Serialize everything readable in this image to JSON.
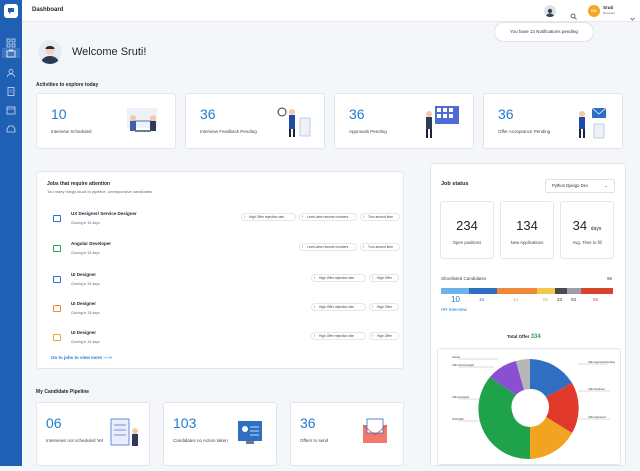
{
  "header": {
    "title": "Dashboard",
    "user": {
      "initials": "DS",
      "name": "Sruti",
      "role": "Recruiter"
    }
  },
  "notification": {
    "text": "You have 13 Notifications pending"
  },
  "welcome": {
    "title": "Welcome Sruti!"
  },
  "activities": {
    "title": "Activities to explore today",
    "cards": [
      {
        "value": "10",
        "label": "Interview Scheduled"
      },
      {
        "value": "36",
        "label": "Interview Feedback Pending"
      },
      {
        "value": "36",
        "label": "Approvals Pending"
      },
      {
        "value": "36",
        "label": "Offer Acceptance Pending"
      }
    ]
  },
  "jobs": {
    "title": "Jobs that require attention",
    "subtitle": "Too many things stuck in pipeline, unresponsive candidates",
    "rows": [
      {
        "title": "UX Designer/ Service Designer",
        "sub": "Closing in 15 days",
        "tags": [
          "High Offer rejection rate",
          "Level-wise resume numbers",
          "Turn around time"
        ]
      },
      {
        "title": "Angular Developer",
        "sub": "Closing in 15 days",
        "tags": [
          "Level-wise resume numbers",
          "Turn around time"
        ]
      },
      {
        "title": "UI Designer",
        "sub": "Closing in 15 days",
        "tags": [
          "High Offer rejection rate",
          "High Offer"
        ]
      },
      {
        "title": "UI Designer",
        "sub": "Closing in 15 days",
        "tags": [
          "High Offer rejection rate",
          "High Offer"
        ]
      },
      {
        "title": "UI Designer",
        "sub": "Closing in 15 days",
        "tags": [
          "High Offer rejection rate",
          "High Offer"
        ]
      }
    ],
    "link": "Go to jobs to view more ---->"
  },
  "pipeline": {
    "title": "My Candidate Pipeline",
    "cards": [
      {
        "value": "06",
        "label": "Interviews not scheduled Yet"
      },
      {
        "value": "103",
        "label": "Candidates no Action taken"
      },
      {
        "value": "36",
        "label": "Offers to send"
      }
    ]
  },
  "job_status": {
    "title": "Job status",
    "dropdown": "Python Django Dev",
    "stats": [
      {
        "value": "234",
        "unit": "",
        "label": "Open positions"
      },
      {
        "value": "134",
        "unit": "",
        "label": "New Applications"
      },
      {
        "value": "34",
        "unit": "days",
        "label": "Avg. Time to fill"
      }
    ],
    "shortlisted_label": "Shortlisted Candidates",
    "shortlisted_total": "98",
    "segments": [
      {
        "value": "10",
        "color": "#6cb2ea"
      },
      {
        "value": "10",
        "color": "#2e6fc2"
      },
      {
        "value": "14",
        "color": "#f08a3a"
      },
      {
        "value": "02",
        "color": "#f2c94c"
      },
      {
        "value": "23",
        "color": "#4a4a4a"
      },
      {
        "value": "03",
        "color": "#9aa0a8"
      },
      {
        "value": "05",
        "color": "#d9432b"
      }
    ],
    "hr_label": "HR Interview",
    "total_offer_label": "Total Offer",
    "total_offer_value": "334",
    "pie_labels": [
      "Joined",
      "Offer Not Accepted",
      "Offer Accepted",
      "Total Offer",
      "Offer Approval Pending",
      "Offer Declined",
      "Offer Approved"
    ]
  },
  "colors": {
    "sidebar": "#1f5fb4",
    "accent": "#1f7bd1",
    "success": "#2aa05a"
  }
}
